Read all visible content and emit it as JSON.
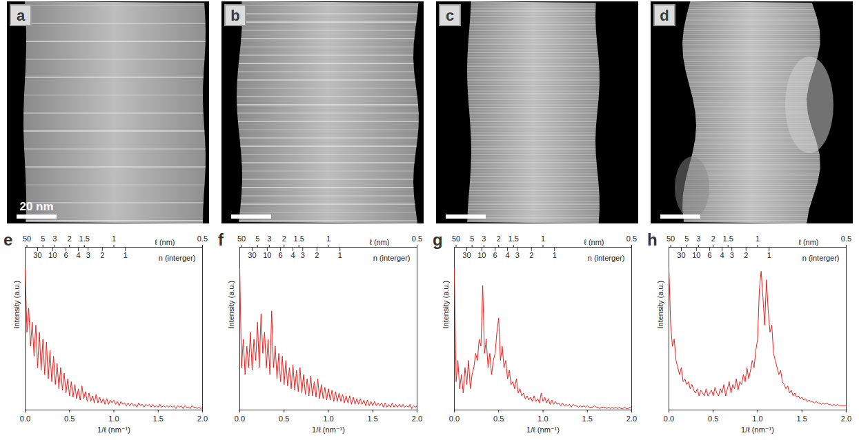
{
  "images": [
    {
      "label": "a",
      "scale_bar": "20 nm"
    },
    {
      "label": "b"
    },
    {
      "label": "c"
    },
    {
      "label": "d"
    }
  ],
  "chart_data": [
    {
      "type": "line",
      "label": "e",
      "color": "#e8221e",
      "xlabel": "1/ℓ (nm⁻¹)",
      "ylabel": "Intensity (a.u.)",
      "xlim": [
        0,
        2
      ],
      "xticks": [
        {
          "value": 0,
          "label": "0.0"
        },
        {
          "value": 0.5,
          "label": "0.5"
        },
        {
          "value": 1,
          "label": "1.0"
        },
        {
          "value": 1.5,
          "label": "1.5"
        },
        {
          "value": 2,
          "label": "2.0"
        }
      ],
      "ylim": [
        0,
        1.15
      ],
      "tick_labels": "x",
      "top_axes": [
        {
          "label": "ℓ (nm)",
          "ticks": [
            {
              "value": 0.02,
              "label": "50"
            },
            {
              "value": 0.2,
              "label": "5"
            },
            {
              "value": 0.333,
              "label": "3"
            },
            {
              "value": 0.5,
              "label": "2"
            },
            {
              "value": 0.667,
              "label": "1.5"
            },
            {
              "value": 1,
              "label": "1"
            },
            {
              "value": 2,
              "label": "0.5"
            }
          ]
        },
        {
          "label": "n (interger)",
          "ticks": [
            {
              "value": 0.14,
              "label": "30"
            },
            {
              "value": 0.31,
              "label": "10"
            },
            {
              "value": 0.46,
              "label": "6"
            },
            {
              "value": 0.6,
              "label": "4"
            },
            {
              "value": 0.71,
              "label": "3"
            },
            {
              "value": 0.87,
              "label": "2"
            },
            {
              "value": 1.13,
              "label": "1"
            }
          ]
        }
      ],
      "x": [
        0,
        0.02,
        0.04,
        0.06,
        0.08,
        0.1,
        0.12,
        0.14,
        0.16,
        0.18,
        0.2,
        0.22,
        0.24,
        0.26,
        0.28,
        0.3,
        0.32,
        0.34,
        0.36,
        0.38,
        0.4,
        0.42,
        0.44,
        0.46,
        0.48,
        0.5,
        0.52,
        0.54,
        0.56,
        0.58,
        0.6,
        0.62,
        0.64,
        0.66,
        0.68,
        0.7,
        0.72,
        0.74,
        0.76,
        0.78,
        0.8,
        0.82,
        0.84,
        0.86,
        0.88,
        0.9,
        0.92,
        0.94,
        0.96,
        0.98,
        1,
        1.02,
        1.04,
        1.06,
        1.08,
        1.1,
        1.12,
        1.14,
        1.16,
        1.18,
        1.2,
        1.22,
        1.24,
        1.26,
        1.28,
        1.3,
        1.32,
        1.34,
        1.36,
        1.38,
        1.4,
        1.42,
        1.44,
        1.46,
        1.48,
        1.5,
        1.52,
        1.54,
        1.56,
        1.58,
        1.6,
        1.62,
        1.64,
        1.66,
        1.68,
        1.7,
        1.72,
        1.74,
        1.76,
        1.78,
        1.8,
        1.82,
        1.84,
        1.86,
        1.88,
        1.9,
        1.92,
        1.94,
        1.96,
        1.98,
        2
      ],
      "values": [
        1.0,
        0.55,
        0.72,
        0.45,
        0.62,
        0.38,
        0.6,
        0.3,
        0.55,
        0.28,
        0.5,
        0.25,
        0.48,
        0.22,
        0.42,
        0.2,
        0.38,
        0.18,
        0.33,
        0.15,
        0.3,
        0.14,
        0.26,
        0.12,
        0.22,
        0.1,
        0.2,
        0.09,
        0.18,
        0.08,
        0.15,
        0.07,
        0.17,
        0.08,
        0.13,
        0.06,
        0.12,
        0.06,
        0.1,
        0.05,
        0.11,
        0.05,
        0.09,
        0.05,
        0.08,
        0.04,
        0.08,
        0.04,
        0.07,
        0.05,
        0.07,
        0.04,
        0.06,
        0.03,
        0.06,
        0.04,
        0.05,
        0.03,
        0.05,
        0.03,
        0.05,
        0.03,
        0.04,
        0.02,
        0.05,
        0.03,
        0.04,
        0.02,
        0.04,
        0.03,
        0.04,
        0.02,
        0.04,
        0.02,
        0.03,
        0.02,
        0.04,
        0.02,
        0.03,
        0.02,
        0.03,
        0.02,
        0.03,
        0.02,
        0.03,
        0.01,
        0.03,
        0.02,
        0.03,
        0.01,
        0.03,
        0.02,
        0.02,
        0.01,
        0.03,
        0.02,
        0.02,
        0.01,
        0.02,
        0.01,
        0.02
      ]
    },
    {
      "type": "line",
      "label": "f",
      "color": "#e8221e",
      "xlabel": "1/ℓ (nm⁻¹)",
      "ylabel": "Intensity (a.u.)",
      "xlim": [
        0,
        2
      ],
      "xticks": [
        {
          "value": 0,
          "label": "0.0"
        },
        {
          "value": 0.5,
          "label": "0.5"
        },
        {
          "value": 1,
          "label": "1.0"
        },
        {
          "value": 1.5,
          "label": "1.5"
        },
        {
          "value": 2,
          "label": "2.0"
        }
      ],
      "ylim": [
        0,
        1.15
      ],
      "tick_labels": "x",
      "top_axes": [
        {
          "label": "ℓ (nm)",
          "ticks": [
            {
              "value": 0.02,
              "label": "50"
            },
            {
              "value": 0.2,
              "label": "5"
            },
            {
              "value": 0.333,
              "label": "3"
            },
            {
              "value": 0.5,
              "label": "2"
            },
            {
              "value": 0.667,
              "label": "1.5"
            },
            {
              "value": 1,
              "label": "1"
            },
            {
              "value": 2,
              "label": "0.5"
            }
          ]
        },
        {
          "label": "n (interger)",
          "ticks": [
            {
              "value": 0.14,
              "label": "30"
            },
            {
              "value": 0.31,
              "label": "10"
            },
            {
              "value": 0.46,
              "label": "6"
            },
            {
              "value": 0.6,
              "label": "4"
            },
            {
              "value": 0.71,
              "label": "3"
            },
            {
              "value": 0.87,
              "label": "2"
            },
            {
              "value": 1.13,
              "label": "1"
            }
          ]
        }
      ],
      "x": [
        0,
        0.02,
        0.04,
        0.06,
        0.08,
        0.1,
        0.12,
        0.14,
        0.16,
        0.18,
        0.2,
        0.22,
        0.24,
        0.26,
        0.28,
        0.3,
        0.32,
        0.34,
        0.36,
        0.38,
        0.4,
        0.42,
        0.44,
        0.46,
        0.48,
        0.5,
        0.52,
        0.54,
        0.56,
        0.58,
        0.6,
        0.62,
        0.64,
        0.66,
        0.68,
        0.7,
        0.72,
        0.74,
        0.76,
        0.78,
        0.8,
        0.82,
        0.84,
        0.86,
        0.88,
        0.9,
        0.92,
        0.94,
        0.96,
        0.98,
        1,
        1.02,
        1.04,
        1.06,
        1.08,
        1.1,
        1.12,
        1.14,
        1.16,
        1.18,
        1.2,
        1.22,
        1.24,
        1.26,
        1.28,
        1.3,
        1.32,
        1.34,
        1.36,
        1.38,
        1.4,
        1.42,
        1.44,
        1.46,
        1.48,
        1.5,
        1.52,
        1.54,
        1.56,
        1.58,
        1.6,
        1.62,
        1.64,
        1.66,
        1.68,
        1.7,
        1.72,
        1.74,
        1.76,
        1.78,
        1.8,
        1.82,
        1.84,
        1.86,
        1.88,
        1.9,
        1.92,
        1.94,
        1.96,
        1.98,
        2
      ],
      "values": [
        1.0,
        0.3,
        0.5,
        0.25,
        0.45,
        0.3,
        0.55,
        0.28,
        0.5,
        0.35,
        0.62,
        0.3,
        0.68,
        0.4,
        0.55,
        0.3,
        0.5,
        0.25,
        0.7,
        0.3,
        0.45,
        0.22,
        0.4,
        0.2,
        0.38,
        0.18,
        0.35,
        0.17,
        0.3,
        0.15,
        0.32,
        0.14,
        0.28,
        0.13,
        0.3,
        0.12,
        0.25,
        0.11,
        0.22,
        0.1,
        0.24,
        0.1,
        0.2,
        0.09,
        0.22,
        0.08,
        0.18,
        0.08,
        0.16,
        0.07,
        0.15,
        0.07,
        0.14,
        0.06,
        0.13,
        0.06,
        0.12,
        0.06,
        0.11,
        0.05,
        0.1,
        0.05,
        0.1,
        0.04,
        0.09,
        0.04,
        0.08,
        0.04,
        0.08,
        0.04,
        0.07,
        0.03,
        0.07,
        0.03,
        0.06,
        0.03,
        0.06,
        0.03,
        0.05,
        0.03,
        0.05,
        0.02,
        0.05,
        0.02,
        0.04,
        0.02,
        0.05,
        0.02,
        0.04,
        0.02,
        0.04,
        0.02,
        0.04,
        0.02,
        0.03,
        0.02,
        0.04,
        0.01,
        0.03,
        0.02,
        0.03
      ]
    },
    {
      "type": "line",
      "label": "g",
      "color": "#e8221e",
      "xlabel": "1/ℓ (nm⁻¹)",
      "ylabel": "Intensity (a.u.)",
      "xlim": [
        0,
        2
      ],
      "xticks": [
        {
          "value": 0,
          "label": "0.0"
        },
        {
          "value": 0.5,
          "label": "0.5"
        },
        {
          "value": 1,
          "label": "1.0"
        },
        {
          "value": 1.5,
          "label": "1.5"
        },
        {
          "value": 2,
          "label": "2.0"
        }
      ],
      "ylim": [
        0,
        1.15
      ],
      "tick_labels": "x",
      "top_axes": [
        {
          "label": "ℓ (nm)",
          "ticks": [
            {
              "value": 0.02,
              "label": "50"
            },
            {
              "value": 0.2,
              "label": "5"
            },
            {
              "value": 0.333,
              "label": "3"
            },
            {
              "value": 0.5,
              "label": "2"
            },
            {
              "value": 0.667,
              "label": "1.5"
            },
            {
              "value": 1,
              "label": "1"
            },
            {
              "value": 2,
              "label": "0.5"
            }
          ]
        },
        {
          "label": "n (interger)",
          "ticks": [
            {
              "value": 0.14,
              "label": "30"
            },
            {
              "value": 0.31,
              "label": "10"
            },
            {
              "value": 0.46,
              "label": "6"
            },
            {
              "value": 0.6,
              "label": "4"
            },
            {
              "value": 0.71,
              "label": "3"
            },
            {
              "value": 0.87,
              "label": "2"
            },
            {
              "value": 1.13,
              "label": "1"
            }
          ]
        }
      ],
      "x": [
        0,
        0.02,
        0.04,
        0.06,
        0.08,
        0.1,
        0.12,
        0.14,
        0.16,
        0.18,
        0.2,
        0.22,
        0.24,
        0.26,
        0.28,
        0.3,
        0.32,
        0.34,
        0.36,
        0.38,
        0.4,
        0.42,
        0.44,
        0.46,
        0.48,
        0.5,
        0.52,
        0.54,
        0.56,
        0.58,
        0.6,
        0.62,
        0.64,
        0.66,
        0.68,
        0.7,
        0.72,
        0.74,
        0.76,
        0.78,
        0.8,
        0.82,
        0.84,
        0.86,
        0.88,
        0.9,
        0.92,
        0.94,
        0.96,
        0.98,
        1,
        1.02,
        1.04,
        1.06,
        1.08,
        1.1,
        1.12,
        1.14,
        1.16,
        1.18,
        1.2,
        1.22,
        1.24,
        1.26,
        1.28,
        1.3,
        1.32,
        1.34,
        1.36,
        1.38,
        1.4,
        1.42,
        1.44,
        1.46,
        1.48,
        1.5,
        1.52,
        1.54,
        1.56,
        1.58,
        1.6,
        1.62,
        1.64,
        1.66,
        1.68,
        1.7,
        1.72,
        1.74,
        1.76,
        1.78,
        1.8,
        1.82,
        1.84,
        1.86,
        1.88,
        1.9,
        1.92,
        1.94,
        1.96,
        1.98,
        2
      ],
      "values": [
        1.0,
        0.2,
        0.35,
        0.15,
        0.25,
        0.12,
        0.3,
        0.18,
        0.35,
        0.15,
        0.25,
        0.3,
        0.4,
        0.35,
        0.5,
        0.45,
        0.88,
        0.4,
        0.5,
        0.3,
        0.4,
        0.25,
        0.35,
        0.4,
        0.55,
        0.65,
        0.35,
        0.45,
        0.3,
        0.35,
        0.22,
        0.28,
        0.18,
        0.2,
        0.15,
        0.22,
        0.12,
        0.15,
        0.1,
        0.12,
        0.08,
        0.1,
        0.07,
        0.09,
        0.06,
        0.1,
        0.06,
        0.08,
        0.05,
        0.12,
        0.06,
        0.09,
        0.05,
        0.08,
        0.04,
        0.07,
        0.04,
        0.06,
        0.04,
        0.05,
        0.03,
        0.05,
        0.03,
        0.04,
        0.03,
        0.04,
        0.02,
        0.04,
        0.03,
        0.03,
        0.02,
        0.03,
        0.02,
        0.03,
        0.02,
        0.03,
        0.02,
        0.02,
        0.02,
        0.03,
        0.02,
        0.02,
        0.01,
        0.02,
        0.02,
        0.02,
        0.01,
        0.02,
        0.01,
        0.02,
        0.01,
        0.02,
        0.01,
        0.02,
        0.01,
        0.01,
        0.02,
        0.01,
        0.01,
        0.02,
        0.01
      ]
    },
    {
      "type": "line",
      "label": "h",
      "color": "#e8221e",
      "xlabel": "1/ℓ (nm⁻¹)",
      "ylabel": "Intensity (a.u.)",
      "xlim": [
        0,
        2
      ],
      "xticks": [
        {
          "value": 0,
          "label": "0.0"
        },
        {
          "value": 0.5,
          "label": "0.5"
        },
        {
          "value": 1,
          "label": "1.0"
        },
        {
          "value": 1.5,
          "label": "1.5"
        },
        {
          "value": 2,
          "label": "2.0"
        }
      ],
      "ylim": [
        0,
        1.15
      ],
      "tick_labels": "x",
      "top_axes": [
        {
          "label": "ℓ (nm)",
          "ticks": [
            {
              "value": 0.02,
              "label": "50"
            },
            {
              "value": 0.2,
              "label": "5"
            },
            {
              "value": 0.333,
              "label": "3"
            },
            {
              "value": 0.5,
              "label": "2"
            },
            {
              "value": 0.667,
              "label": "1.5"
            },
            {
              "value": 1,
              "label": "1"
            },
            {
              "value": 2,
              "label": "0.5"
            }
          ]
        },
        {
          "label": "n (interger)",
          "ticks": [
            {
              "value": 0.14,
              "label": "30"
            },
            {
              "value": 0.31,
              "label": "10"
            },
            {
              "value": 0.46,
              "label": "6"
            },
            {
              "value": 0.6,
              "label": "4"
            },
            {
              "value": 0.71,
              "label": "3"
            },
            {
              "value": 0.87,
              "label": "2"
            },
            {
              "value": 1.13,
              "label": "1"
            }
          ]
        }
      ],
      "x": [
        0,
        0.02,
        0.04,
        0.06,
        0.08,
        0.1,
        0.12,
        0.14,
        0.16,
        0.18,
        0.2,
        0.22,
        0.24,
        0.26,
        0.28,
        0.3,
        0.32,
        0.34,
        0.36,
        0.38,
        0.4,
        0.42,
        0.44,
        0.46,
        0.48,
        0.5,
        0.52,
        0.54,
        0.56,
        0.58,
        0.6,
        0.62,
        0.64,
        0.66,
        0.68,
        0.7,
        0.72,
        0.74,
        0.76,
        0.78,
        0.8,
        0.82,
        0.84,
        0.86,
        0.88,
        0.9,
        0.92,
        0.94,
        0.96,
        0.98,
        1,
        1.02,
        1.04,
        1.06,
        1.08,
        1.1,
        1.12,
        1.14,
        1.16,
        1.18,
        1.2,
        1.22,
        1.24,
        1.26,
        1.28,
        1.3,
        1.32,
        1.34,
        1.36,
        1.38,
        1.4,
        1.42,
        1.44,
        1.46,
        1.48,
        1.5,
        1.52,
        1.54,
        1.56,
        1.58,
        1.6,
        1.62,
        1.64,
        1.66,
        1.68,
        1.7,
        1.72,
        1.74,
        1.76,
        1.78,
        1.8,
        1.82,
        1.84,
        1.86,
        1.88,
        1.9,
        1.92,
        1.94,
        1.96,
        1.98,
        2
      ],
      "values": [
        1.0,
        0.6,
        0.45,
        0.5,
        0.35,
        0.3,
        0.25,
        0.3,
        0.2,
        0.22,
        0.18,
        0.2,
        0.15,
        0.18,
        0.14,
        0.12,
        0.15,
        0.1,
        0.14,
        0.12,
        0.1,
        0.15,
        0.1,
        0.12,
        0.14,
        0.1,
        0.16,
        0.12,
        0.1,
        0.15,
        0.12,
        0.18,
        0.1,
        0.15,
        0.2,
        0.12,
        0.18,
        0.15,
        0.22,
        0.14,
        0.2,
        0.18,
        0.25,
        0.2,
        0.3,
        0.22,
        0.28,
        0.35,
        0.3,
        0.42,
        0.5,
        0.85,
        0.98,
        0.8,
        0.6,
        0.92,
        0.7,
        0.55,
        0.6,
        0.4,
        0.35,
        0.3,
        0.25,
        0.28,
        0.2,
        0.18,
        0.15,
        0.17,
        0.12,
        0.14,
        0.1,
        0.12,
        0.09,
        0.1,
        0.08,
        0.09,
        0.07,
        0.08,
        0.06,
        0.07,
        0.06,
        0.06,
        0.05,
        0.06,
        0.05,
        0.05,
        0.04,
        0.05,
        0.04,
        0.05,
        0.04,
        0.04,
        0.03,
        0.04,
        0.03,
        0.04,
        0.03,
        0.03,
        0.03,
        0.03,
        0.03
      ]
    }
  ]
}
